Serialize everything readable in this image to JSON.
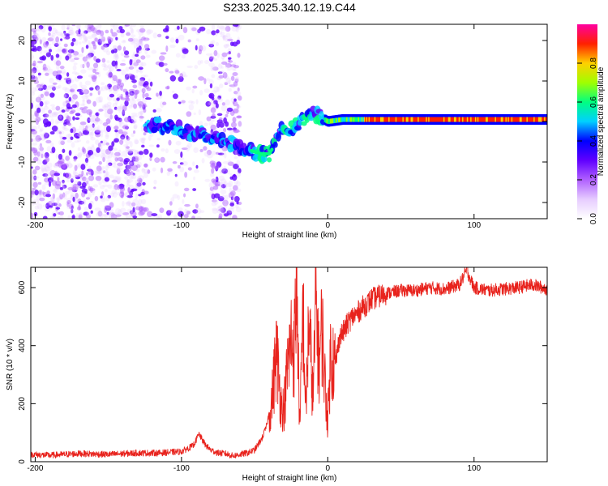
{
  "title": "S233.2025.340.12.19.C44",
  "chart_data": [
    {
      "type": "heatmap",
      "xlabel": "Height of straight line (km)",
      "ylabel": "Frequency (Hz)",
      "xlim": [
        -203,
        150
      ],
      "ylim": [
        -24,
        24
      ],
      "xticks": [
        -200,
        -100,
        0,
        100
      ],
      "yticks": [
        -20,
        -10,
        0,
        10,
        20
      ],
      "colorbar": {
        "label": "Normalized spectral amplitude",
        "range": [
          0,
          1
        ],
        "ticks": [
          "0.0",
          "0.2",
          "0.4",
          "0.6",
          "0.8"
        ],
        "colors": [
          "#ffffff",
          "#e6ccff",
          "#b060ff",
          "#6000ff",
          "#0000ff",
          "#00d0ff",
          "#00ff80",
          "#a0ff00",
          "#ffd000",
          "#ff2000",
          "#ff00a0"
        ]
      },
      "ridge": {
        "x": [
          -122,
          -110,
          -100,
          -90,
          -80,
          -70,
          -60,
          -50,
          -45,
          -40,
          -35,
          -30,
          -25,
          -20,
          -15,
          -10,
          -5,
          0,
          10,
          20,
          30,
          50,
          80,
          100,
          120,
          150
        ],
        "freq": [
          -1,
          -1,
          -2,
          -3,
          -4,
          -5,
          -6,
          -7.5,
          -8,
          -8,
          -5,
          -1,
          -2,
          0,
          0.5,
          2,
          1,
          0,
          0.5,
          0.5,
          0.5,
          0.5,
          0.5,
          0.5,
          0.5,
          0.5
        ]
      }
    },
    {
      "type": "line",
      "xlabel": "Height of straight line (km)",
      "ylabel": "SNR (10 * v/v)",
      "xlim": [
        -203,
        150
      ],
      "ylim": [
        0,
        670
      ],
      "xticks": [
        -200,
        -100,
        0,
        100
      ],
      "yticks": [
        0,
        200,
        400,
        600
      ],
      "color": "#e8231d",
      "series": [
        {
          "name": "SNR",
          "x": [
            -203,
            -190,
            -170,
            -150,
            -130,
            -115,
            -100,
            -92,
            -88,
            -84,
            -80,
            -75,
            -70,
            -65,
            -60,
            -55,
            -50,
            -45,
            -42,
            -38,
            -35,
            -32,
            -30,
            -27,
            -25,
            -23,
            -21,
            -20,
            -19,
            -17,
            -15,
            -13,
            -10,
            -8,
            -6,
            -4,
            -2,
            0,
            2,
            5,
            8,
            11,
            14,
            17,
            20,
            23,
            26,
            30,
            35,
            40,
            45,
            50,
            60,
            70,
            80,
            90,
            95,
            100,
            110,
            120,
            130,
            140,
            150
          ],
          "y": [
            25,
            22,
            28,
            25,
            30,
            30,
            35,
            55,
            95,
            60,
            40,
            30,
            28,
            20,
            25,
            30,
            40,
            80,
            120,
            220,
            380,
            200,
            180,
            350,
            420,
            380,
            640,
            300,
            100,
            540,
            170,
            480,
            220,
            560,
            330,
            470,
            280,
            140,
            380,
            330,
            430,
            450,
            480,
            500,
            510,
            530,
            540,
            560,
            570,
            580,
            585,
            590,
            590,
            600,
            595,
            610,
            660,
            600,
            590,
            595,
            600,
            610,
            595
          ]
        }
      ]
    }
  ]
}
